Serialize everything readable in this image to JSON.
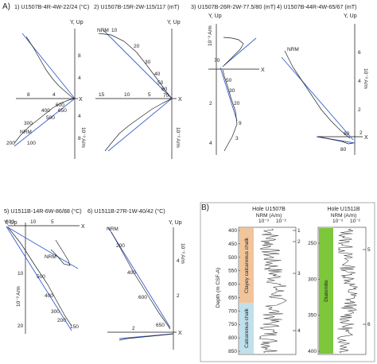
{
  "panel_a_label": "A)",
  "panel_b_label": "B)",
  "plots": [
    {
      "title": "1) U1507B-4R-4W-22/24 (°C)",
      "y_axis": "Y, Up",
      "x_axis": "X",
      "unit": "10⁻³ A/m",
      "x_ticks": [
        "8",
        "4"
      ],
      "y_ticks": [
        "8",
        "4",
        "4",
        "8"
      ],
      "steps": [
        "NRM",
        "100",
        "200",
        "300",
        "400",
        "500",
        "600",
        "650"
      ]
    },
    {
      "title": "2) U1507B-15R-2W-115/117 (mT)",
      "y_axis": "Y, Up",
      "x_axis": "X",
      "unit": "10⁻³ A/m",
      "x_ticks": [
        "15",
        "10",
        "5"
      ],
      "steps": [
        "NRM",
        "10",
        "20",
        "30",
        "40",
        "50",
        "60",
        "70"
      ]
    },
    {
      "title": "3) U1507B-26R-2W-77.5/80 (mT)",
      "y_axis": "Y, Up",
      "x_axis": "X",
      "unit": "10⁻³ A/m",
      "y_ticks": [
        "2",
        "4"
      ],
      "steps": [
        "70",
        "50",
        "30",
        "20",
        "9",
        "3"
      ]
    },
    {
      "title": "4) U1507B-44R-4W-65/67 (mT)",
      "y_axis": "Y, Up",
      "x_axis": "X",
      "unit": "10⁻³ A/m",
      "x_ticks": [
        "2"
      ],
      "y_ticks": [
        "6",
        "4",
        "2"
      ],
      "steps": [
        "NRM",
        "60",
        "80"
      ]
    },
    {
      "title": "5) U1511B-14R-6W-86/88 (°C)",
      "y_axis": "Y, Up",
      "x_axis": "X",
      "unit": "10⁻³ A/m",
      "x_ticks": [
        "10",
        "5"
      ],
      "y_ticks": [
        "10",
        "20"
      ],
      "steps": [
        "600",
        "NRM",
        "500",
        "400",
        "300",
        "200",
        "150"
      ]
    },
    {
      "title": "6) U1511B-27R-1W-40/42 (°C)",
      "y_axis": "Y, Up",
      "x_axis": "X",
      "unit": "10⁻³ A/m",
      "x_ticks": [
        "2"
      ],
      "y_ticks": [
        "4",
        "2"
      ],
      "steps": [
        "NRM",
        "200",
        "400",
        "600",
        "650"
      ]
    }
  ],
  "logs": {
    "ylabel": "Depth (m CSF-A)",
    "left": {
      "title": "Hole U1507B",
      "xlabel": "NRM (A/m)",
      "x_ticks": [
        "10⁻³",
        "10⁻²"
      ],
      "y_ticks": [
        "400",
        "450",
        "500",
        "550",
        "600",
        "650",
        "700",
        "750",
        "800",
        "850"
      ],
      "lithology_upper": "Clayey calcareous chalk",
      "lithology_lower": "Calcareous chalk",
      "color_upper": "#f2c49a",
      "color_lower": "#bfe0ec",
      "markers": [
        "1",
        "2",
        "3",
        "4"
      ]
    },
    "right": {
      "title": "Hole U1511B",
      "xlabel": "NRM (A/m)",
      "x_ticks": [
        "10⁻³",
        "10⁻²"
      ],
      "y_ticks": [
        "250",
        "300",
        "350",
        "400"
      ],
      "lithology": "Diatomite",
      "color": "#7cc73a",
      "markers": [
        "5",
        "6"
      ]
    }
  }
}
